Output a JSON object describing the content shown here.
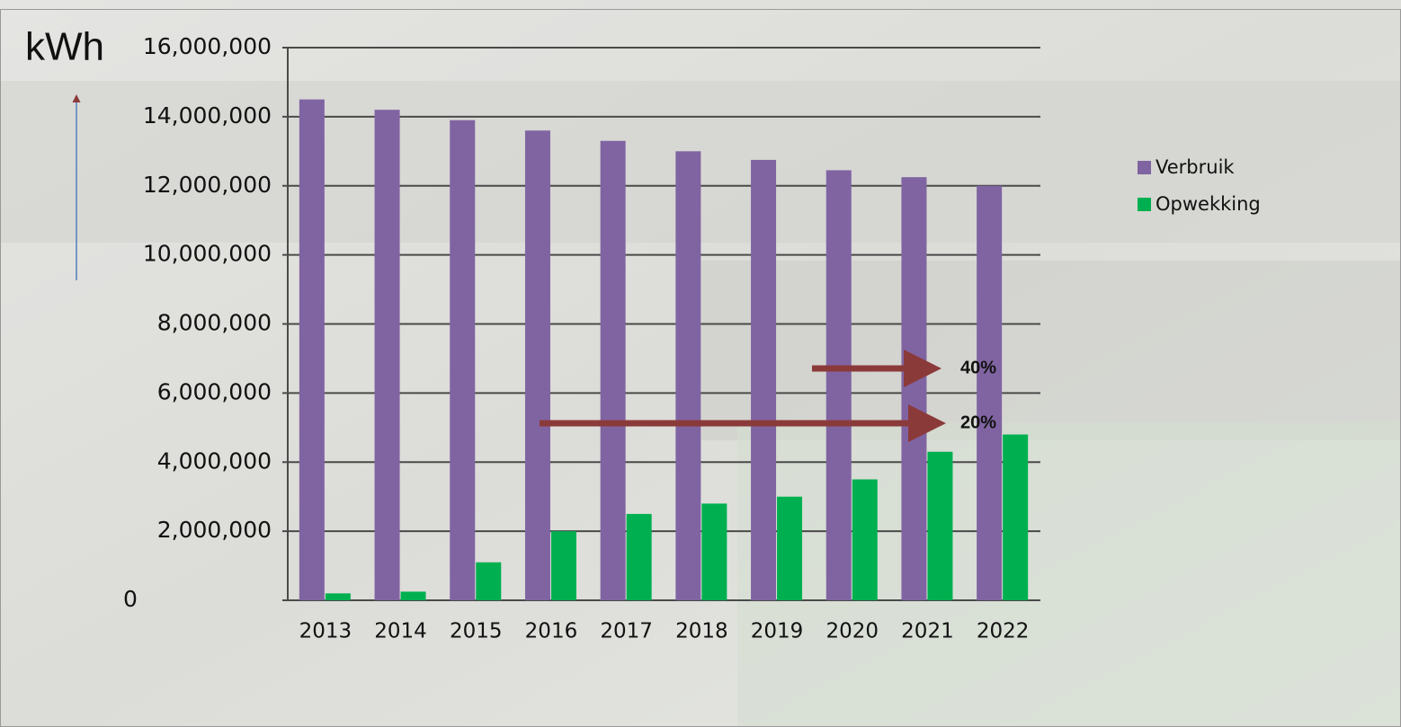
{
  "chart_data": {
    "type": "bar",
    "y_label": "kWh",
    "categories": [
      "2013",
      "2014",
      "2015",
      "2016",
      "2017",
      "2018",
      "2019",
      "2020",
      "2021",
      "2022"
    ],
    "series": [
      {
        "name": "Verbruik",
        "color": "#8064a2",
        "values": [
          14500000,
          14200000,
          13900000,
          13600000,
          13300000,
          13000000,
          12750000,
          12450000,
          12250000,
          12000000
        ]
      },
      {
        "name": "Opwekking",
        "color": "#00b050",
        "values": [
          200000,
          250000,
          1100000,
          2000000,
          2500000,
          2800000,
          3000000,
          3500000,
          4300000,
          4800000
        ]
      }
    ],
    "ylim": [
      0,
      16000000
    ],
    "yticks": [
      0,
      {
        "value": 2000000,
        "label": "2,000,000"
      },
      {
        "value": 4000000,
        "label": "4,000,000"
      },
      {
        "value": 6000000,
        "label": "6,000,000"
      },
      {
        "value": 8000000,
        "label": "8,000,000"
      },
      {
        "value": 10000000,
        "label": "10,000,000"
      },
      {
        "value": 12000000,
        "label": "12,000,000"
      },
      {
        "value": 14000000,
        "label": "14,000,000"
      },
      {
        "value": 16000000,
        "label": "16,000,000"
      }
    ],
    "grid": true,
    "legend": "right",
    "annotations": [
      "40%",
      "20%"
    ]
  }
}
